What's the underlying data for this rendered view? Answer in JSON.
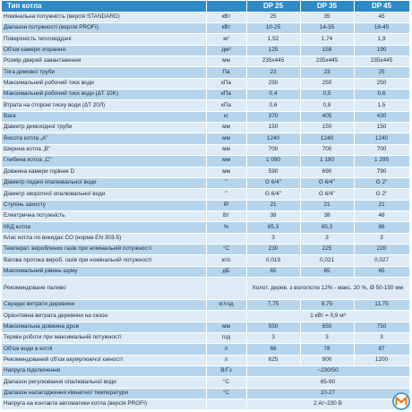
{
  "header": {
    "name": "Тип котла",
    "models": [
      "DP 25",
      "DP 35",
      "DP 45"
    ]
  },
  "rows": [
    {
      "name": "Номінальна потужність (версія STANDARD)",
      "unit": "кВт",
      "v": [
        "25",
        "35",
        "45"
      ]
    },
    {
      "name": "Діапазон потужності (версія PROFI)",
      "unit": "кВт",
      "v": [
        "10-25",
        "14-35",
        "18-45"
      ]
    },
    {
      "name": "Поверхність тепловіддачі",
      "unit": "м²",
      "v": [
        "1,52",
        "1,74",
        "1,9"
      ]
    },
    {
      "name": "Об'єм камери згорання",
      "unit": "дм³",
      "v": [
        "125",
        "158",
        "190"
      ]
    },
    {
      "name": "Розмір дверей завантаження",
      "unit": "мм",
      "v": [
        "235x445",
        "235x445",
        "235x445"
      ]
    },
    {
      "name": "Тяга димової труби",
      "unit": "Па",
      "v": [
        "23",
        "23",
        "25"
      ]
    },
    {
      "name": "Максимальний робочий тиск води",
      "unit": "кПа",
      "v": [
        "250",
        "250",
        "250"
      ]
    },
    {
      "name": "Максимальний робочий тиск води (ΔT 10K)",
      "unit": "кПа",
      "v": [
        "0,4",
        "0,5",
        "0,6"
      ]
    },
    {
      "name": "Втрата на стороні тиску води (ΔT 20Л)",
      "unit": "кПа",
      "v": [
        "0,6",
        "0,8",
        "1,5"
      ]
    },
    {
      "name": "Вага",
      "unit": "кг",
      "v": [
        "370",
        "405",
        "430"
      ]
    },
    {
      "name": "Діаметр димохідної труби",
      "unit": "мм",
      "v": [
        "150",
        "150",
        "150"
      ]
    },
    {
      "name": "Висота котла „А”",
      "unit": "мм",
      "v": [
        "1240",
        "1240",
        "1240"
      ]
    },
    {
      "name": "Ширина котла „В”",
      "unit": "мм",
      "v": [
        "700",
        "700",
        "700"
      ]
    },
    {
      "name": "Глибина котла „С”",
      "unit": "мм",
      "v": [
        "1 090",
        "1 190",
        "1 295"
      ]
    },
    {
      "name": "Довжина камери горіння D",
      "unit": "мм",
      "v": [
        "590",
        "690",
        "790"
      ]
    },
    {
      "name": "Діаметр подачі опалювальної води",
      "unit": "\"",
      "v": [
        "G 6/4\"",
        "G 6/4\"",
        "G 2\""
      ]
    },
    {
      "name": "Діаметр зворотної опалювальної води",
      "unit": "\"",
      "v": [
        "G 6/4\"",
        "G 6/4\"",
        "G 2\""
      ]
    },
    {
      "name": "Ступінь захисту",
      "unit": "IP",
      "v": [
        "21",
        "21",
        "21"
      ]
    },
    {
      "name": "Електрична потужність",
      "unit": "Вт",
      "v": [
        "38",
        "38",
        "48"
      ]
    },
    {
      "name": "ККД котла",
      "unit": "%",
      "v": [
        "85,3",
        "85,3",
        "86"
      ]
    },
    {
      "name": "Клас котла по викидах СО (норма EN 303-5)",
      "unit": "",
      "v": [
        "3",
        "3",
        "3"
      ]
    },
    {
      "name": "Температ. вироблених газів при номінальній потужності",
      "unit": "°С",
      "v": [
        "230",
        "225",
        "220"
      ]
    },
    {
      "name": "Вагова протока вироб. газів при номінальній потужності",
      "unit": "кг/с",
      "v": [
        "0,019",
        "0,021",
        "0,027"
      ]
    },
    {
      "name": "Максимальний рівень шуму",
      "unit": "дБ",
      "v": [
        "65",
        "65",
        "65"
      ]
    },
    {
      "name": "Рекомендоване паливо",
      "unit": "",
      "span": "Колот. дерев. з вологістю 12% - макс. 20 %, Ø 50-150 мм"
    },
    {
      "name": "Середні витрати деревини",
      "unit": "кг/год",
      "v": [
        "7,75",
        "9,75",
        "11,75"
      ]
    },
    {
      "name": "Орієнтовна витрата деревини на сезон",
      "unit": "",
      "span": "1 кВт = 0,9 м³"
    },
    {
      "name": "Максимальна довжина дров",
      "unit": "мм",
      "v": [
        "550",
        "650",
        "750"
      ]
    },
    {
      "name": "Термін роботи при максимальній потужності",
      "unit": "год",
      "v": [
        "3",
        "3",
        "3"
      ]
    },
    {
      "name": "Об'єм води в котлі",
      "unit": "л",
      "v": [
        "68",
        "78",
        "87"
      ]
    },
    {
      "name": "Рекомендований об'єм акумулюючої ємності",
      "unit": "л",
      "v": [
        "625",
        "900",
        "1200"
      ]
    },
    {
      "name": "Напруга підключення",
      "unit": "В/Гз",
      "span": "~230/50"
    },
    {
      "name": "Діапазон регулювання опалювальної води",
      "unit": "°С",
      "span": "65-90"
    },
    {
      "name": "Діапазон налагодження кімнатної температури",
      "unit": "°С",
      "span": "10-27"
    },
    {
      "name": "Напруга на контакти автоматики котла (версія PROFI)",
      "unit": "",
      "span": "2 А/~230 В"
    }
  ],
  "colors": {
    "header": "#2d8ac7",
    "row_light": "#dcebf6",
    "row_dark": "#b6d5ec",
    "logo_ring": "#2d8ac7",
    "logo_letter": "#e8801a"
  },
  "logo_icon": "m-logo-icon"
}
